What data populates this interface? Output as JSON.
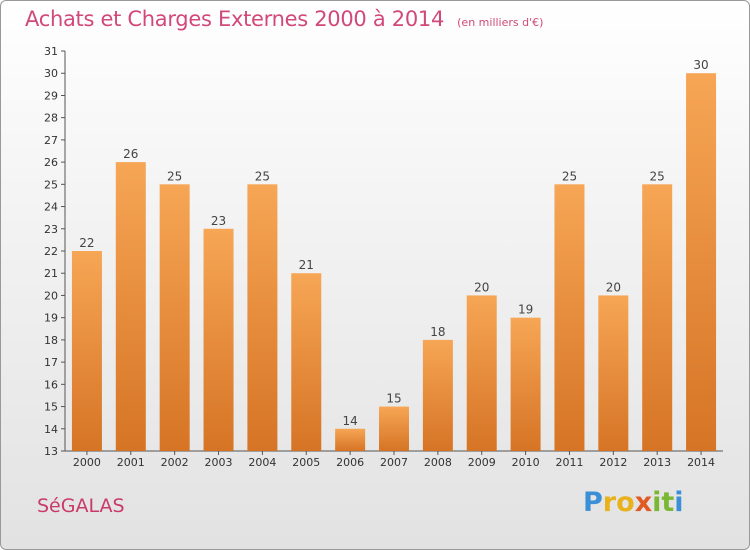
{
  "title": "Achats et Charges Externes 2000 à 2014",
  "subtitle": "(en milliers d'€)",
  "commune": "SéGALAS",
  "logo": {
    "text": "Proxiti",
    "letters": [
      {
        "ch": "P",
        "color": "#3a8fd6"
      },
      {
        "ch": "r",
        "color": "#e9b21d"
      },
      {
        "ch": "o",
        "color": "#e9b21d"
      },
      {
        "ch": "x",
        "color": "#e05a22"
      },
      {
        "ch": "i",
        "color": "#7ab834"
      },
      {
        "ch": "t",
        "color": "#7ab834"
      },
      {
        "ch": "i",
        "color": "#3a8fd6"
      }
    ]
  },
  "colors": {
    "bar_light": "#f6a655",
    "bar_dark": "#d67425",
    "title": "#d1497a"
  },
  "chart_data": {
    "type": "bar",
    "categories": [
      "2000",
      "2001",
      "2002",
      "2003",
      "2004",
      "2005",
      "2006",
      "2007",
      "2008",
      "2009",
      "2010",
      "2011",
      "2012",
      "2013",
      "2014"
    ],
    "values": [
      22,
      26,
      25,
      23,
      25,
      21,
      14,
      15,
      18,
      20,
      19,
      25,
      20,
      25,
      30
    ],
    "title": "Achats et Charges Externes 2000 à 2014",
    "xlabel": "",
    "ylabel": "",
    "ylim": [
      13,
      31
    ],
    "yticks": [
      13,
      14,
      15,
      16,
      17,
      18,
      19,
      20,
      21,
      22,
      23,
      24,
      25,
      26,
      27,
      28,
      29,
      30,
      31
    ],
    "grid": false,
    "legend": "none",
    "data_labels": true
  }
}
